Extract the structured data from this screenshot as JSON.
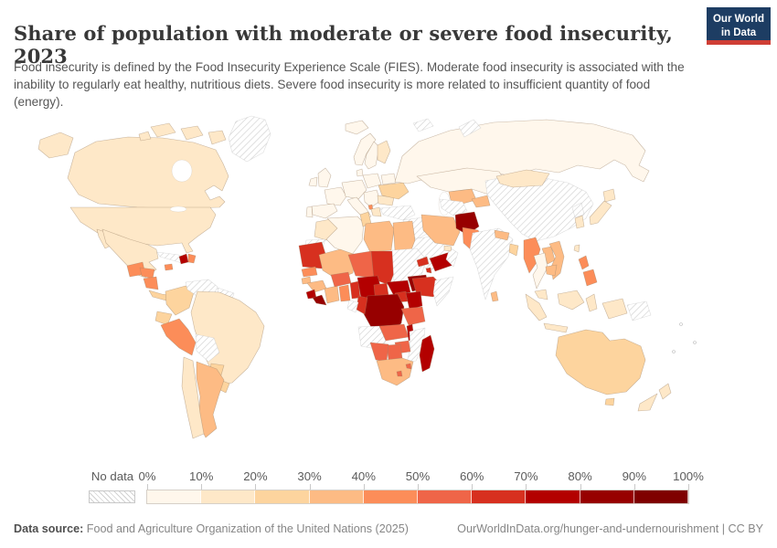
{
  "header": {
    "title": "Share of population with moderate or severe food insecurity, 2023",
    "subtitle": "Food insecurity is defined by the Food Insecurity Experience Scale (FIES). Moderate food insecurity is associated with the inability to regularly eat healthy, nutritious diets. Severe food insecurity is more related to insufficient quantity of food (energy).",
    "logo": {
      "line1": "Our World",
      "line2": "in Data",
      "bg_color": "#1d3d63",
      "stripe_color": "#cf3e35"
    }
  },
  "legend": {
    "no_data_label": "No data",
    "tick_labels": [
      "0%",
      "10%",
      "20%",
      "30%",
      "40%",
      "50%",
      "60%",
      "70%",
      "80%",
      "90%",
      "100%"
    ],
    "bin_colors": [
      "#FFF7EC",
      "#FEE8C8",
      "#FDD49E",
      "#FDBB84",
      "#FC8D59",
      "#EF6548",
      "#D7301F",
      "#B30000",
      "#970000",
      "#7F0000"
    ]
  },
  "footer": {
    "source_label": "Data source:",
    "source_text": " Food and Agriculture Organization of the United Nations (2025)",
    "license_text": "OurWorldInData.org/hunger-and-undernourishment | CC BY"
  },
  "chart_data": {
    "type": "choropleth",
    "title": "Share of population with moderate or severe food insecurity, 2023",
    "unit": "% of population",
    "bin_ranges": [
      "0-10%",
      "10-20%",
      "20-30%",
      "30-40%",
      "40-50%",
      "50-60%",
      "60-70%",
      "70-80%",
      "80-90%",
      "90-100%"
    ],
    "no_data_value": -1,
    "country_bins": {
      "usa": 1,
      "canada": 1,
      "greenland": -1,
      "mexico": 1,
      "guatemala": 4,
      "honduras": 4,
      "nicaragua": 4,
      "costa-rica-panama": 2,
      "cuba": -1,
      "jamaica": 4,
      "haiti": 7,
      "dominican-republic": 4,
      "colombia": 2,
      "venezuela": -1,
      "guyana-suriname": -1,
      "ecuador": 2,
      "peru": 4,
      "brazil": 1,
      "bolivia": -1,
      "paraguay": 2,
      "uruguay": 2,
      "chile": 1,
      "argentina": 3,
      "iceland": 0,
      "united-kingdom": 0,
      "ireland": 0,
      "norway": 0,
      "sweden": 0,
      "finland": 1,
      "denmark": 0,
      "france": 0,
      "spain": 0,
      "portugal": 0,
      "central-europe": 0,
      "italy": 0,
      "poland-baltics": 0,
      "belarus": 0,
      "balkans": 0,
      "greece": 1,
      "albania": 4,
      "romania": 1,
      "ukraine": 2,
      "russia": 0,
      "svalbard": -1,
      "novaya-zemlya": -1,
      "turkey": -1,
      "syria-iraq": -1,
      "jordan-israel": 0,
      "saudi-arabia": -1,
      "yemen": 7,
      "oman": -1,
      "uae": 1,
      "iran": 3,
      "afghanistan": 8,
      "pakistan": 4,
      "turkmenistan": -1,
      "uzbekistan": 3,
      "kazakhstan": 0,
      "kyrgyzstan-tajikistan": 3,
      "india": -1,
      "nepal": 3,
      "bangladesh": 2,
      "sri-lanka": 3,
      "china": -1,
      "mongolia": 1,
      "north-korea": -1,
      "south-korea": 1,
      "japan": 1,
      "taiwan": 1,
      "myanmar": 4,
      "thailand": 0,
      "laos": 3,
      "vietnam": 3,
      "cambodia": 3,
      "malaysia": 1,
      "indonesia": 1,
      "philippines": 4,
      "papua-new-guinea": -1,
      "australia": 2,
      "new-zealand": 1,
      "morocco": 1,
      "western-sahara": -1,
      "algeria": 0,
      "tunisia": 2,
      "libya": 3,
      "egypt": 3,
      "mauritania": 6,
      "mali": 3,
      "niger": 5,
      "chad": 6,
      "sudan": -1,
      "eritrea": 6,
      "djibouti": 6,
      "senegal": 4,
      "guinea-bissau": 3,
      "guinea": 3,
      "sierra-leone": 7,
      "liberia": 8,
      "ivory-coast": 3,
      "burkina-faso": 5,
      "ghana": 4,
      "togo-benin": 6,
      "nigeria": 7,
      "cameroon": 6,
      "central-african-republic": 7,
      "south-sudan": 8,
      "ethiopia": 6,
      "somalia": -1,
      "uganda": 6,
      "kenya": 7,
      "rwanda-burundi": 7,
      "dr-congo": 8,
      "congo": 6,
      "gabon": -1,
      "tanzania": 5,
      "angola": -1,
      "zambia": 5,
      "malawi": 7,
      "mozambique": -1,
      "zimbabwe": 5,
      "botswana": 5,
      "namibia": 5,
      "south-africa": 3,
      "lesotho": 5,
      "eswatini": 5,
      "madagascar": 7
    }
  }
}
